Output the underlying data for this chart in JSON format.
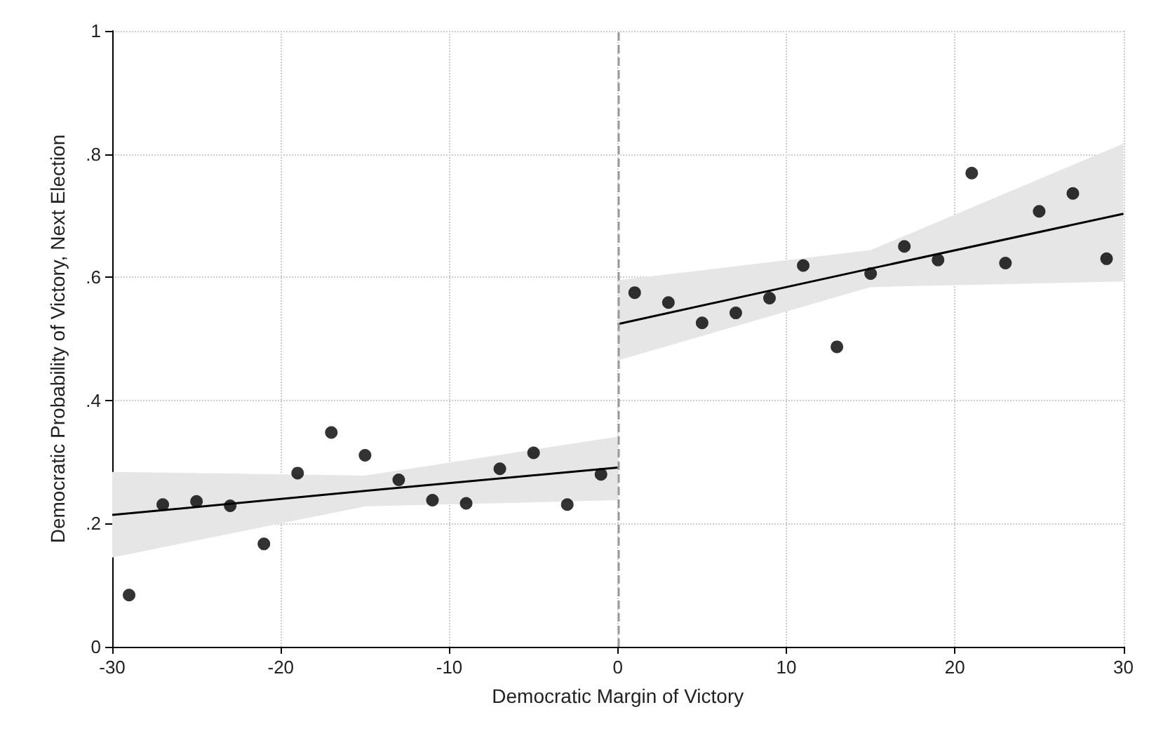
{
  "chart_data": {
    "type": "scatter",
    "xlabel": "Democratic Margin of Victory",
    "ylabel": "Democratic Probability of Victory, Next Election",
    "xlim": [
      -30,
      30
    ],
    "xticks": [
      -30,
      -20,
      -10,
      0,
      10,
      20,
      30
    ],
    "ylim": [
      0,
      1
    ],
    "yticks": [
      {
        "value": 0,
        "label": "0"
      },
      {
        "value": 0.2,
        "label": ".2"
      },
      {
        "value": 0.4,
        "label": ".4"
      },
      {
        "value": 0.6,
        "label": ".6"
      },
      {
        "value": 0.8,
        "label": ".8"
      },
      {
        "value": 1,
        "label": "1"
      }
    ],
    "grid": true,
    "ref_lines": [
      {
        "axis": "x",
        "value": 0,
        "label": null,
        "color": "#999999",
        "line_style": "dashed"
      }
    ],
    "series": [
      {
        "marker": "circle",
        "color": "#000000",
        "x": [
          -29,
          -27,
          -25,
          -23,
          -21,
          -19,
          -17,
          -15,
          -13,
          -11,
          -9,
          -7,
          -5,
          -3,
          -1,
          1,
          3,
          5,
          7,
          9,
          11,
          13,
          15,
          17,
          19,
          21,
          23,
          25,
          27,
          29
        ],
        "values": [
          0.084,
          0.231,
          0.236,
          0.229,
          0.167,
          0.282,
          0.348,
          0.311,
          0.271,
          0.238,
          0.233,
          0.289,
          0.315,
          0.231,
          0.28,
          0.575,
          0.559,
          0.526,
          0.542,
          0.566,
          0.619,
          0.487,
          0.606,
          0.65,
          0.628,
          0.769,
          0.623,
          0.707,
          0.736,
          0.63
        ]
      },
      {
        "type": "line",
        "marker": "none",
        "color": "#000000",
        "x": [
          -30,
          -15,
          0
        ],
        "values": [
          0.214,
          0.253,
          0.291
        ],
        "lower": [
          0.145,
          0.228,
          0.238
        ],
        "upper": [
          0.284,
          0.278,
          0.341
        ]
      },
      {
        "type": "line",
        "marker": "none",
        "color": "#000000",
        "x": [
          0,
          15,
          30
        ],
        "values": [
          0.524,
          0.614,
          0.703
        ],
        "lower": [
          0.465,
          0.584,
          0.593
        ],
        "upper": [
          0.595,
          0.644,
          0.817
        ]
      }
    ]
  }
}
